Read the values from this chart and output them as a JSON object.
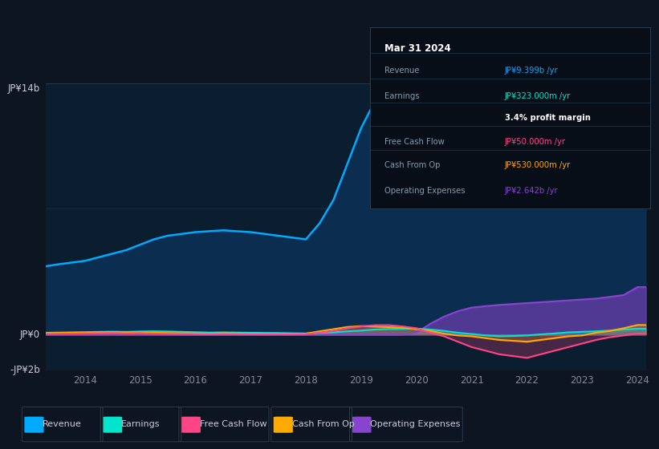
{
  "bg_color": "#0d1520",
  "plot_bg_color": "#0a1e30",
  "ylim": [
    -2000000000,
    14000000000
  ],
  "ylabel_top": "JP¥14b",
  "ylabel_zero": "JP¥0",
  "ylabel_neg": "-JP¥2b",
  "years": [
    2013.3,
    2013.5,
    2013.75,
    2014.0,
    2014.25,
    2014.5,
    2014.75,
    2015.0,
    2015.25,
    2015.5,
    2015.75,
    2016.0,
    2016.25,
    2016.5,
    2016.75,
    2017.0,
    2017.25,
    2017.5,
    2017.75,
    2018.0,
    2018.25,
    2018.5,
    2018.75,
    2019.0,
    2019.25,
    2019.5,
    2019.75,
    2020.0,
    2020.25,
    2020.5,
    2020.75,
    2021.0,
    2021.25,
    2021.5,
    2021.75,
    2022.0,
    2022.25,
    2022.5,
    2022.75,
    2023.0,
    2023.25,
    2023.5,
    2023.75,
    2024.0,
    2024.15
  ],
  "revenue": [
    3800000000,
    3900000000,
    4000000000,
    4100000000,
    4300000000,
    4500000000,
    4700000000,
    5000000000,
    5300000000,
    5500000000,
    5600000000,
    5700000000,
    5750000000,
    5800000000,
    5750000000,
    5700000000,
    5600000000,
    5500000000,
    5400000000,
    5300000000,
    6200000000,
    7500000000,
    9500000000,
    11500000000,
    13000000000,
    13600000000,
    13500000000,
    13500000000,
    12800000000,
    11500000000,
    10500000000,
    10000000000,
    9500000000,
    9200000000,
    9000000000,
    8900000000,
    8800000000,
    8700000000,
    8750000000,
    8700000000,
    8850000000,
    9000000000,
    9100000000,
    9400000000,
    9399000000
  ],
  "earnings": [
    100000000,
    110000000,
    120000000,
    130000000,
    150000000,
    160000000,
    150000000,
    170000000,
    180000000,
    170000000,
    150000000,
    130000000,
    110000000,
    120000000,
    110000000,
    100000000,
    90000000,
    85000000,
    70000000,
    60000000,
    80000000,
    120000000,
    180000000,
    220000000,
    280000000,
    310000000,
    320000000,
    330000000,
    280000000,
    200000000,
    100000000,
    30000000,
    -50000000,
    -100000000,
    -80000000,
    -50000000,
    10000000,
    60000000,
    120000000,
    150000000,
    180000000,
    220000000,
    280000000,
    323000000,
    323000000
  ],
  "free_cash_flow": [
    30000000,
    40000000,
    50000000,
    60000000,
    70000000,
    80000000,
    60000000,
    70000000,
    50000000,
    40000000,
    30000000,
    20000000,
    10000000,
    20000000,
    15000000,
    10000000,
    5000000,
    10000000,
    5000000,
    20000000,
    100000000,
    200000000,
    350000000,
    450000000,
    520000000,
    520000000,
    450000000,
    350000000,
    100000000,
    -100000000,
    -400000000,
    -700000000,
    -900000000,
    -1100000000,
    -1200000000,
    -1300000000,
    -1100000000,
    -900000000,
    -700000000,
    -500000000,
    -300000000,
    -150000000,
    -50000000,
    50000000,
    50000000
  ],
  "cash_from_op": [
    80000000,
    90000000,
    100000000,
    110000000,
    120000000,
    130000000,
    110000000,
    120000000,
    100000000,
    90000000,
    75000000,
    65000000,
    55000000,
    70000000,
    60000000,
    55000000,
    45000000,
    55000000,
    45000000,
    55000000,
    180000000,
    300000000,
    420000000,
    470000000,
    440000000,
    410000000,
    380000000,
    300000000,
    200000000,
    50000000,
    -50000000,
    -100000000,
    -200000000,
    -300000000,
    -350000000,
    -400000000,
    -300000000,
    -200000000,
    -100000000,
    -50000000,
    100000000,
    200000000,
    350000000,
    530000000,
    530000000
  ],
  "op_expenses": [
    0,
    0,
    0,
    0,
    0,
    0,
    0,
    0,
    0,
    0,
    0,
    0,
    0,
    0,
    0,
    0,
    0,
    0,
    0,
    0,
    0,
    0,
    0,
    0,
    0,
    0,
    0,
    100000000,
    600000000,
    1000000000,
    1300000000,
    1500000000,
    1580000000,
    1650000000,
    1700000000,
    1750000000,
    1800000000,
    1850000000,
    1900000000,
    1950000000,
    2000000000,
    2100000000,
    2200000000,
    2642000000,
    2642000000
  ],
  "revenue_color": "#00aaff",
  "earnings_color": "#00e5cc",
  "fcf_color": "#ff4488",
  "cfop_color": "#ffaa00",
  "opex_color": "#8844cc",
  "revenue_fill": "#0a2d50",
  "legend_items": [
    "Revenue",
    "Earnings",
    "Free Cash Flow",
    "Cash From Op",
    "Operating Expenses"
  ],
  "legend_colors": [
    "#00aaff",
    "#00e5cc",
    "#ff4488",
    "#ffaa00",
    "#8844cc"
  ],
  "xtick_labels": [
    "2014",
    "2015",
    "2016",
    "2017",
    "2018",
    "2019",
    "2020",
    "2021",
    "2022",
    "2023",
    "2024"
  ],
  "xtick_positions": [
    2014,
    2015,
    2016,
    2017,
    2018,
    2019,
    2020,
    2021,
    2022,
    2023,
    2024
  ],
  "tooltip_title": "Mar 31 2024",
  "tooltip_rows": [
    {
      "label": "Revenue",
      "value": "JP¥9.399b /yr",
      "color": "#00aaff"
    },
    {
      "label": "Earnings",
      "value": "JP¥323.000m /yr",
      "color": "#00e5cc"
    },
    {
      "label": "",
      "value": "3.4% profit margin",
      "color": "#ffffff"
    },
    {
      "label": "Free Cash Flow",
      "value": "JP¥50.000m /yr",
      "color": "#ff4488"
    },
    {
      "label": "Cash From Op",
      "value": "JP¥530.000m /yr",
      "color": "#ffaa00"
    },
    {
      "label": "Operating Expenses",
      "value": "JP¥2.642b /yr",
      "color": "#8844cc"
    }
  ]
}
